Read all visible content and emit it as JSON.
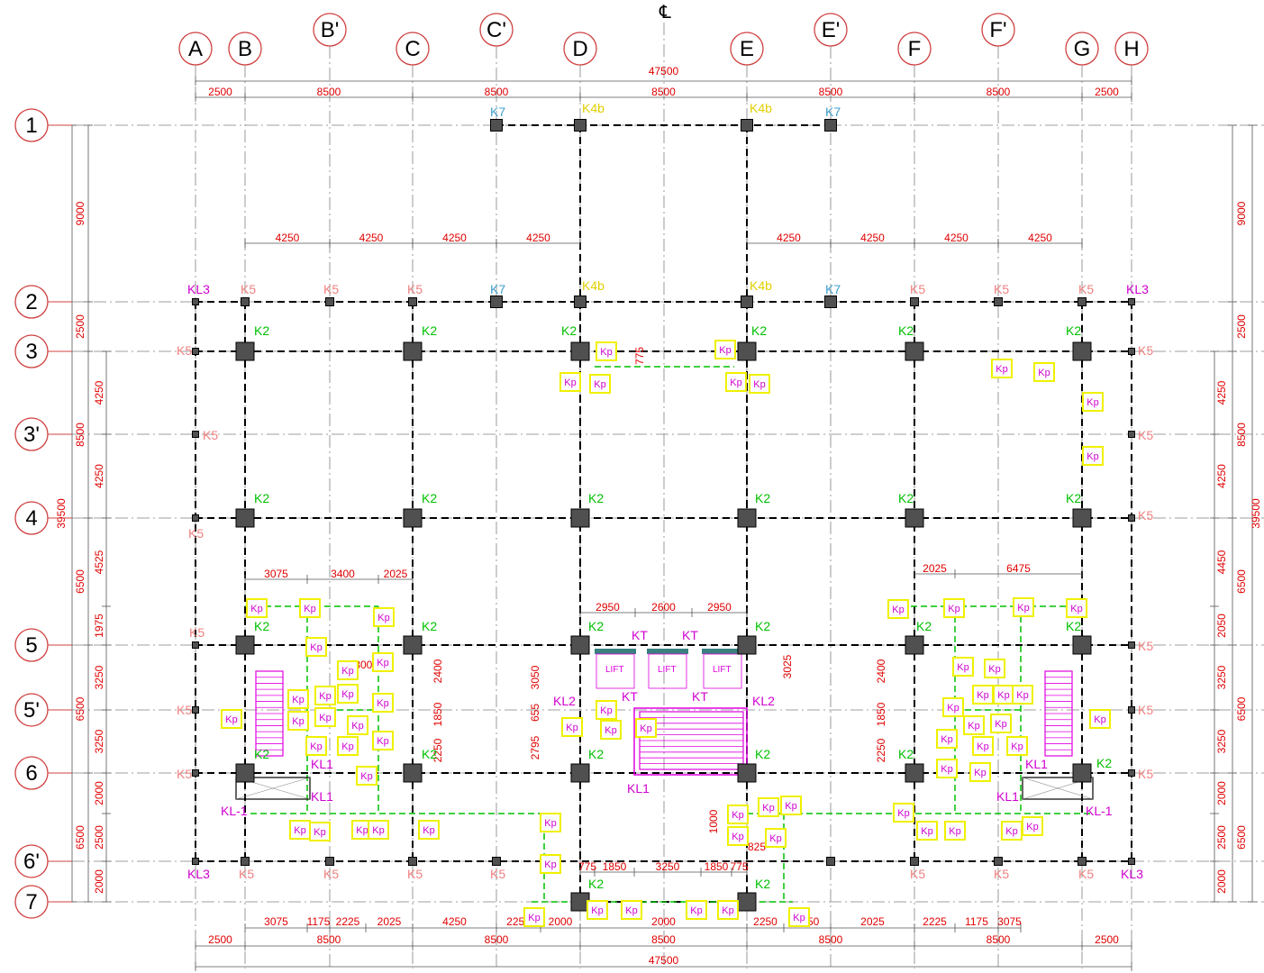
{
  "colors": {
    "grid_line": "#808080",
    "beam_line": "#000000",
    "column_fill": "#505050",
    "dimension": "#e00000",
    "bubble_line": "#d04040",
    "label_K2": "#00c000",
    "label_K5": "#f08080",
    "label_K7": "#40a0d0",
    "label_K4b": "#e0d000",
    "label_KL": "#d000d0",
    "kp_box": "#f0f000",
    "kp_text": "#d000d0",
    "beam_green": "#00c000",
    "stair": "#e000e0",
    "lift_cap": "#3a8080"
  },
  "centerline_symbol": "℄",
  "columns_axes": [
    {
      "id": "A",
      "label": "A"
    },
    {
      "id": "B",
      "label": "B"
    },
    {
      "id": "B'",
      "label": "B'"
    },
    {
      "id": "C",
      "label": "C"
    },
    {
      "id": "C'",
      "label": "C'"
    },
    {
      "id": "D",
      "label": "D"
    },
    {
      "id": "E",
      "label": "E"
    },
    {
      "id": "E'",
      "label": "E'"
    },
    {
      "id": "F",
      "label": "F"
    },
    {
      "id": "F'",
      "label": "F'"
    },
    {
      "id": "G",
      "label": "G"
    },
    {
      "id": "H",
      "label": "H"
    }
  ],
  "row_axes": [
    {
      "id": "1",
      "label": "1"
    },
    {
      "id": "2",
      "label": "2"
    },
    {
      "id": "3",
      "label": "3"
    },
    {
      "id": "3'",
      "label": "3'"
    },
    {
      "id": "4",
      "label": "4"
    },
    {
      "id": "5",
      "label": "5"
    },
    {
      "id": "5'",
      "label": "5'"
    },
    {
      "id": "6",
      "label": "6"
    },
    {
      "id": "6'",
      "label": "6'"
    },
    {
      "id": "7",
      "label": "7"
    }
  ],
  "dims_top": {
    "total": "47500",
    "segments": [
      "2500",
      "8500",
      "8500",
      "8500",
      "8500",
      "8500",
      "2500"
    ],
    "sub_left": [
      "4250",
      "4250",
      "4250",
      "4250"
    ],
    "sub_right": [
      "4250",
      "4250",
      "4250",
      "4250"
    ],
    "stair_left": [
      "3075",
      "3400",
      "2025"
    ],
    "stair_right": [
      "2025",
      "6475"
    ],
    "lift": [
      "2950",
      "2600",
      "2950"
    ],
    "lift2": [
      "775",
      "1850",
      "3250",
      "1850",
      "775"
    ]
  },
  "dims_bottom": {
    "total": "47500",
    "segments": [
      "2500",
      "8500",
      "8500",
      "8500",
      "8500",
      "8500",
      "2500"
    ],
    "sub": [
      "3075",
      "1175",
      "2225",
      "2025",
      "4250",
      "2250",
      "2000",
      "2000",
      "2250",
      "4250",
      "2025",
      "2225",
      "1175",
      "3075"
    ]
  },
  "dims_left": {
    "total": "39500",
    "outer": [
      "9000",
      "2500",
      "8500",
      "6500",
      "6500",
      "6500"
    ],
    "inner": [
      "4250",
      "4250",
      "4525",
      "1975",
      "3250",
      "3250",
      "2000",
      "2500",
      "2000"
    ]
  },
  "dims_right": {
    "outer": [
      "9000",
      "2500",
      "8500",
      "6500",
      "6500",
      "6500"
    ],
    "inner": [
      "4250",
      "4250",
      "4450",
      "2050",
      "3250",
      "3250",
      "2000",
      "2500",
      "2000"
    ],
    "total": "39500"
  },
  "misc_dims": {
    "d775": "775",
    "d1300": "1300",
    "d2400": "2400",
    "d1850": "1850",
    "d2250": "2250",
    "d3050": "3050",
    "d655": "655",
    "d2795": "2795",
    "d3025": "3025",
    "d2400r": "2400",
    "d1850r": "1850",
    "d2250r": "2250",
    "d1000": "1000",
    "d825": "825"
  },
  "labels": {
    "K2": "K2",
    "K5": "K5",
    "K7": "K7",
    "K4b": "K4b",
    "KL1": "KL1",
    "KL-1": "KL-1",
    "KL2": "KL2",
    "KL3": "KL3",
    "KT": "KT",
    "Kp": "Kp",
    "LIFT": "LIFT"
  }
}
